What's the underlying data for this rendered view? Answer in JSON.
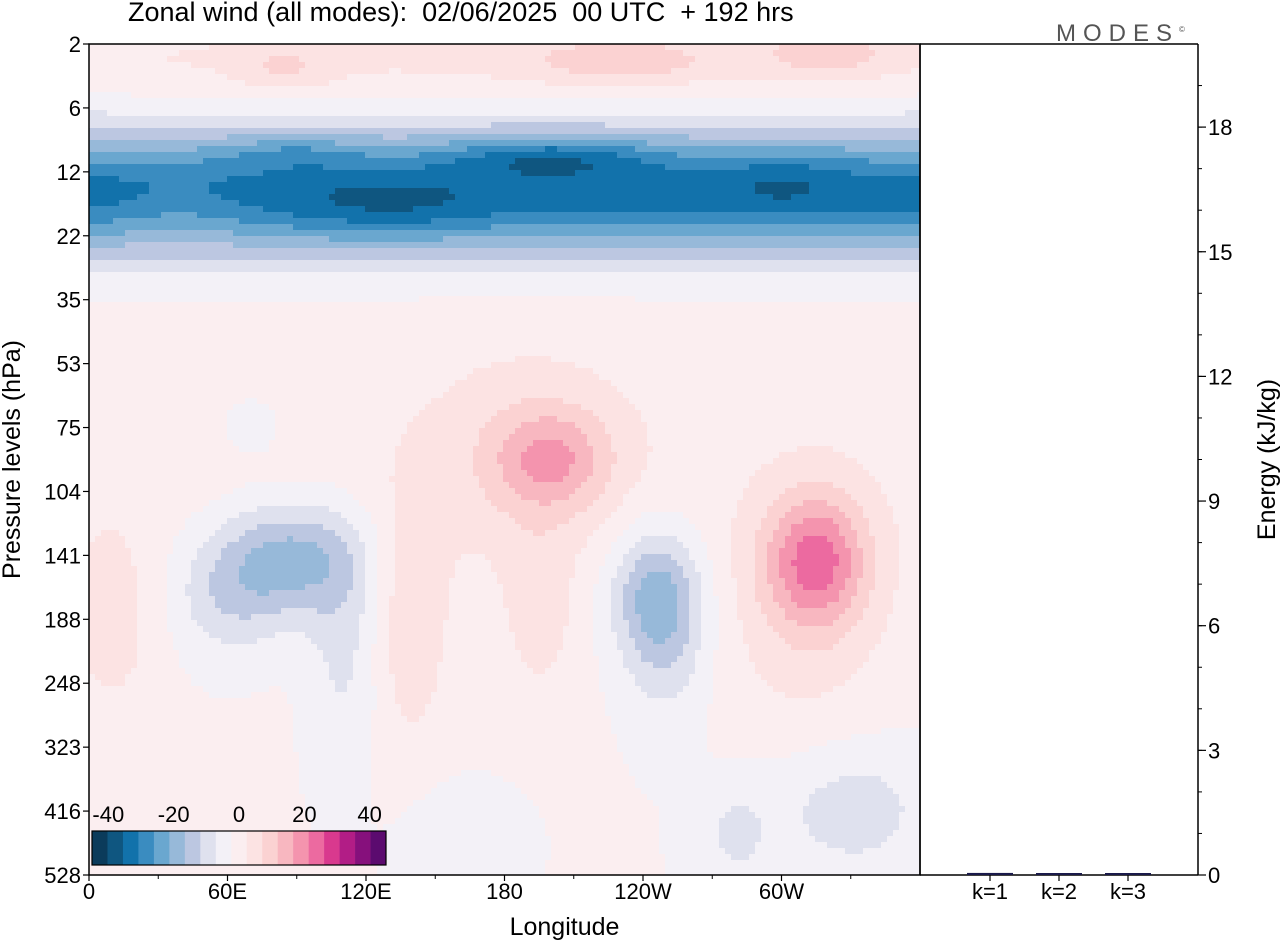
{
  "title": "Zonal wind (all modes):  02/06/2025  00 UTC  + 192 hrs",
  "logo": "MODES",
  "logo_mark": "©",
  "colors": {
    "levels": [
      "#0b3b5b",
      "#0f5680",
      "#1272ab",
      "#3a8cc0",
      "#6aa7cf",
      "#97b9d9",
      "#bcc7e1",
      "#dfe1ee",
      "#f3f1f7",
      "#fbeef0",
      "#fce3e3",
      "#fbd2d2",
      "#f8b7c0",
      "#f494ae",
      "#ec6aa0",
      "#d9398e",
      "#b21d86",
      "#86107c",
      "#5b0b6f"
    ],
    "border": "#000000",
    "bar": "#1a1a4a"
  },
  "chart_data": [
    {
      "type": "heatmap",
      "title": "Zonal wind (all modes):  02/06/2025  00 UTC  + 192 hrs",
      "xlabel": "Longitude",
      "ylabel": "Pressure levels (hPa)",
      "x_ticks": [
        "0",
        "60E",
        "120E",
        "180",
        "120W",
        "60W"
      ],
      "x_tick_values": [
        0,
        60,
        120,
        180,
        240,
        300
      ],
      "xlim": [
        0,
        360
      ],
      "y_ticks": [
        "2",
        "6",
        "12",
        "22",
        "35",
        "53",
        "75",
        "104",
        "141",
        "188",
        "248",
        "323",
        "416",
        "528"
      ],
      "y_order": "top-to-bottom",
      "colorbar": {
        "ticks": [
          "-40",
          "-20",
          "0",
          "20",
          "40"
        ],
        "tick_values": [
          -40,
          -20,
          0,
          20,
          40
        ],
        "range": [
          -45,
          45
        ],
        "step": 5
      },
      "features": [
        {
          "lon": 200,
          "level": "12",
          "value": -45
        },
        {
          "lon": 180,
          "level": "12",
          "value": -40
        },
        {
          "lon": 90,
          "level": "12",
          "value": -38
        },
        {
          "lon": 60,
          "level": "22",
          "value": -30
        },
        {
          "lon": 120,
          "level": "22",
          "value": -35
        },
        {
          "lon": 300,
          "level": "22",
          "value": -30
        },
        {
          "lon": 90,
          "level": "141",
          "value": -15
        },
        {
          "lon": 245,
          "level": "141",
          "value": -12
        },
        {
          "lon": 315,
          "level": "141",
          "value": 20
        },
        {
          "lon": 195,
          "level": "104",
          "value": 15
        },
        {
          "lon": 230,
          "level": "2",
          "value": 15
        },
        {
          "lon": 320,
          "level": "2",
          "value": 15
        }
      ]
    },
    {
      "type": "bar",
      "ylabel": "Energy (kJ/kg)",
      "categories": [
        "k=1",
        "k=2",
        "k=3"
      ],
      "values": [
        0.05,
        0.04,
        0.03
      ],
      "y_ticks": [
        "0",
        "3",
        "6",
        "9",
        "12",
        "15",
        "18"
      ],
      "ylim": [
        0,
        20
      ]
    }
  ]
}
